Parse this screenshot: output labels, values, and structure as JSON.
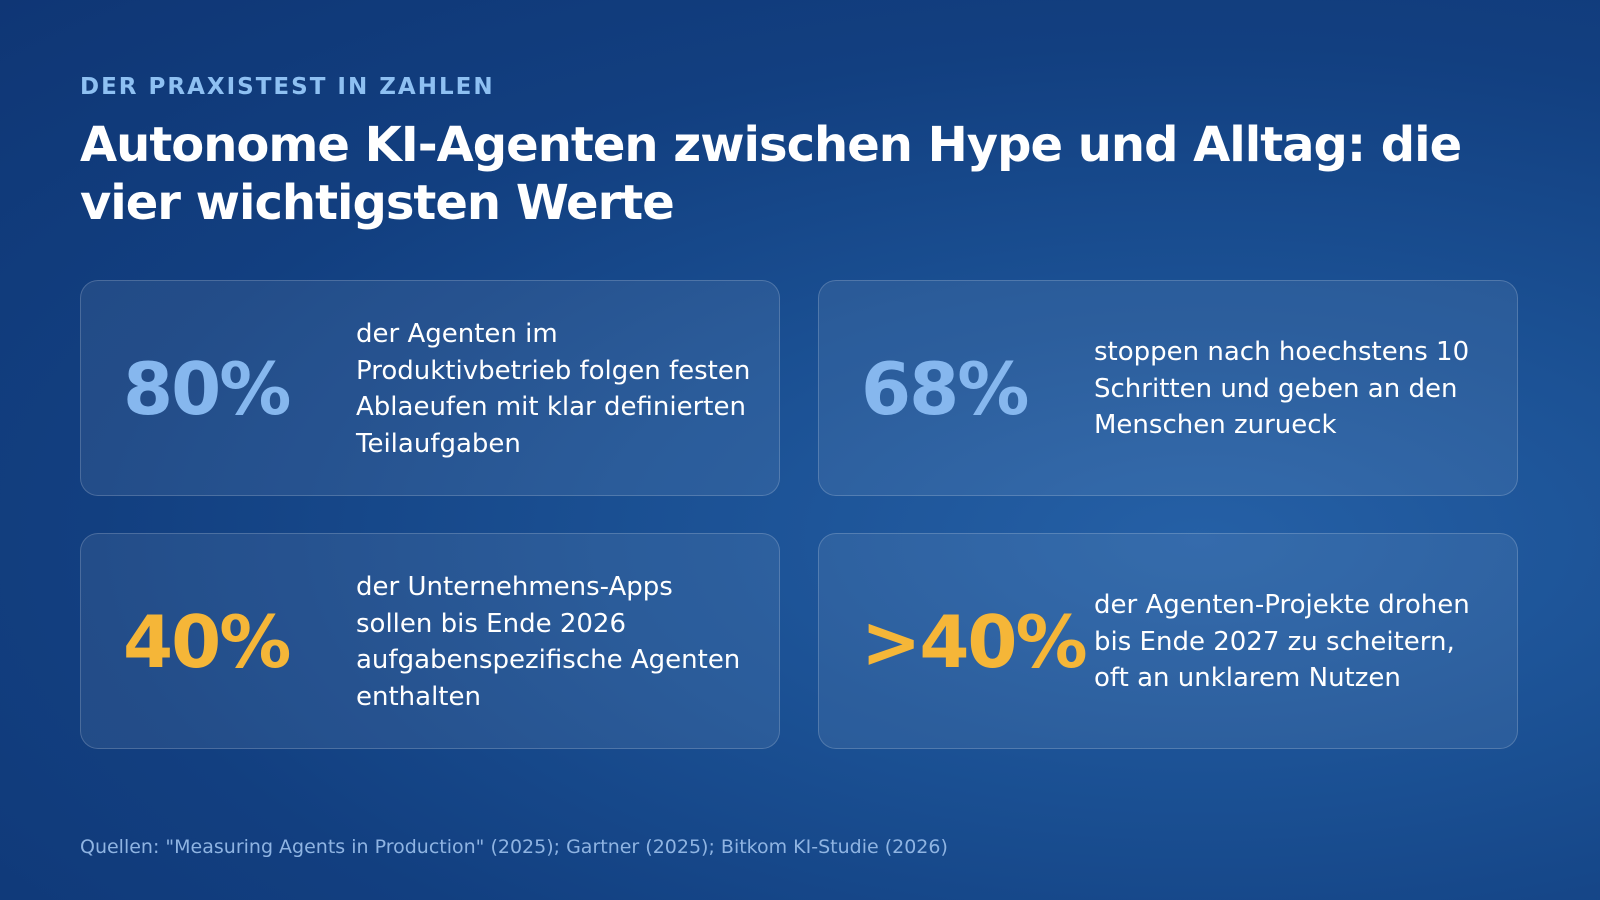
{
  "header": {
    "eyebrow": "DER PRAXISTEST IN ZAHLEN",
    "title": "Autonome KI-Agenten zwischen Hype und Alltag: die vier wichtigsten Werte"
  },
  "stats": [
    {
      "value": "80%",
      "text": "der Agenten im Produktivbetrieb folgen festen Ablaeufen mit klar definierten Teilaufgaben",
      "color": "#86b7ee"
    },
    {
      "value": "68%",
      "text": "stoppen nach hoechstens 10 Schritten und geben an den Menschen zurueck",
      "color": "#86b7ee"
    },
    {
      "value": "40%",
      "text": "der Unternehmens-Apps sollen bis Ende 2026 aufgabenspezifische Agenten enthalten",
      "color": "#f5b638"
    },
    {
      "value": ">40%",
      "text": "der Agenten-Projekte drohen bis Ende 2027 zu scheitern, oft an unklarem Nutzen",
      "color": "#f5b638"
    }
  ],
  "footer": {
    "sources": "Quellen: \"Measuring Agents in Production\" (2025); Gartner (2025); Bitkom KI-Studie (2026)"
  },
  "colors": {
    "background": "#1a4f92",
    "accent_blue": "#86b7ee",
    "accent_gold": "#f5b638",
    "eyebrow": "#8ec0f2"
  }
}
